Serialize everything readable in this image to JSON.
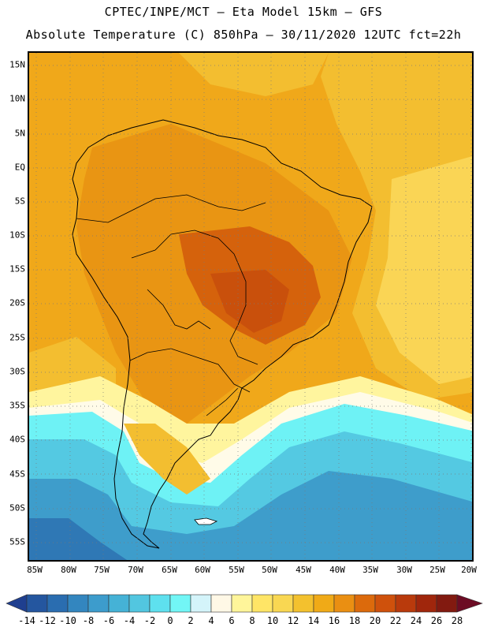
{
  "header": {
    "line1": "CPTEC/INPE/MCT –  Eta Model 15km – GFS",
    "line2": "Absolute Temperature (C) 850hPa – 30/11/2020 12UTC fct=22h"
  },
  "map": {
    "lat_labels": [
      "15N",
      "10N",
      "5N",
      "EQ",
      "5S",
      "10S",
      "15S",
      "20S",
      "25S",
      "30S",
      "35S",
      "40S",
      "45S",
      "50S",
      "55S"
    ],
    "lon_labels": [
      "85W",
      "80W",
      "75W",
      "70W",
      "65W",
      "60W",
      "55W",
      "50W",
      "45W",
      "40W",
      "35W",
      "30W",
      "25W",
      "20W"
    ]
  },
  "colorbar": {
    "labels": [
      "-14",
      "-12",
      "-10",
      "-8",
      "-6",
      "-4",
      "-2",
      "0",
      "2",
      "4",
      "6",
      "8",
      "10",
      "12",
      "14",
      "16",
      "18",
      "20",
      "22",
      "24",
      "26",
      "28"
    ],
    "colors": [
      "#1f3f8f",
      "#24569f",
      "#2a6db0",
      "#3386bf",
      "#3d9ccc",
      "#45b2d6",
      "#52c6e0",
      "#5ee0ee",
      "#72f6f6",
      "#d4f4fa",
      "#fff8e6",
      "#fff59a",
      "#ffe566",
      "#f9d752",
      "#f3c12e",
      "#f0aa17",
      "#ea8f12",
      "#dc6a0c",
      "#cf510c",
      "#b93a0c",
      "#a0260c",
      "#821a10",
      "#6c0c24"
    ],
    "units": "C",
    "range": [
      -14,
      28
    ]
  },
  "field_colors": {
    "hot": "#d5620c",
    "warm_orange": "#e99513",
    "orange": "#f0a81a",
    "gold": "#f3be30",
    "yellow": "#fad555",
    "pale_yellow": "#fff59e",
    "cream": "#fffbe8",
    "cyan": "#6ef2f5",
    "light_blue": "#54c9e2",
    "blue": "#3e9dcb",
    "dark_blue": "#2f78b5"
  }
}
